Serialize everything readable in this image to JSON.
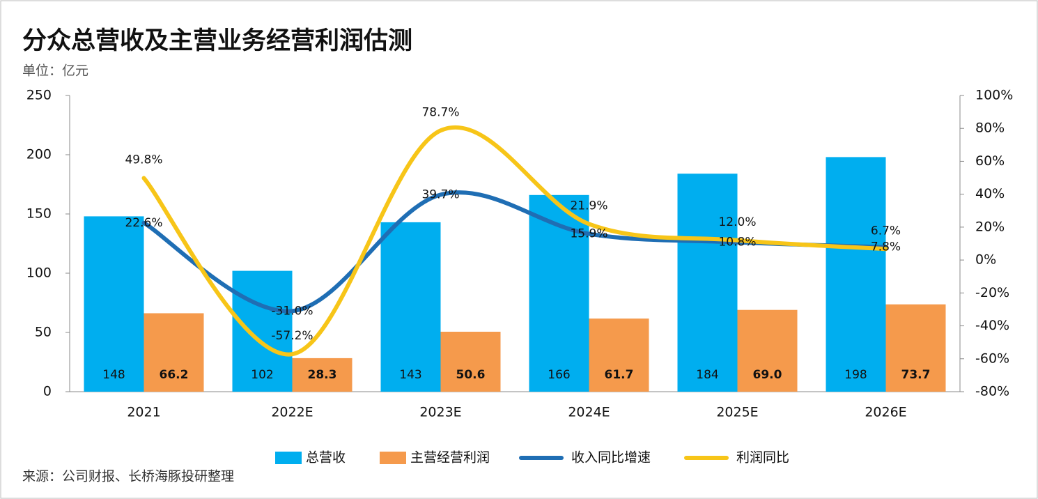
{
  "chart_data": {
    "type": "bar",
    "title": "分众总营收及主营业务经营利润估测",
    "subtitle": "单位：亿元",
    "source": "来源：公司财报、长桥海豚投研整理",
    "categories": [
      "2021",
      "2022E",
      "2023E",
      "2024E",
      "2025E",
      "2026E"
    ],
    "series": [
      {
        "name": "总营收",
        "type": "bar",
        "color": "#00aeef",
        "values": [
          148,
          102,
          143,
          166,
          184,
          198
        ]
      },
      {
        "name": "主营经营利润",
        "type": "bar",
        "color": "#f59a4c",
        "values": [
          66.2,
          28.3,
          50.6,
          61.7,
          69.0,
          73.7
        ],
        "value_labels": [
          "66.2",
          "28.3",
          "50.6",
          "61.7",
          "69.0",
          "73.7"
        ]
      },
      {
        "name": "收入同比增速",
        "type": "line",
        "axis": "y2",
        "color": "#1f6eb4",
        "values": [
          22.6,
          -31.0,
          39.7,
          15.9,
          10.8,
          7.8
        ],
        "value_labels": [
          "22.6%",
          "-31.0%",
          "39.7%",
          "15.9%",
          "10.8%",
          "7.8%"
        ]
      },
      {
        "name": "利润同比",
        "type": "line",
        "axis": "y2",
        "color": "#f7c518",
        "values": [
          49.8,
          -57.2,
          78.7,
          21.9,
          12.0,
          6.7
        ],
        "value_labels": [
          "49.8%",
          "-57.2%",
          "78.7%",
          "21.9%",
          "12.0%",
          "6.7%"
        ]
      }
    ],
    "ylim": [
      0,
      250
    ],
    "yticks": [
      0,
      50,
      100,
      150,
      200,
      250
    ],
    "y2lim": [
      -80,
      100
    ],
    "y2ticks": [
      {
        "value": -80,
        "label": "-80%"
      },
      {
        "value": -60,
        "label": "-60%"
      },
      {
        "value": -40,
        "label": "-40%"
      },
      {
        "value": -20,
        "label": "-20%"
      },
      {
        "value": 0,
        "label": "0%"
      },
      {
        "value": 20,
        "label": "20%"
      },
      {
        "value": 40,
        "label": "40%"
      },
      {
        "value": 60,
        "label": "60%"
      },
      {
        "value": 80,
        "label": "80%"
      },
      {
        "value": 100,
        "label": "100%"
      }
    ]
  }
}
